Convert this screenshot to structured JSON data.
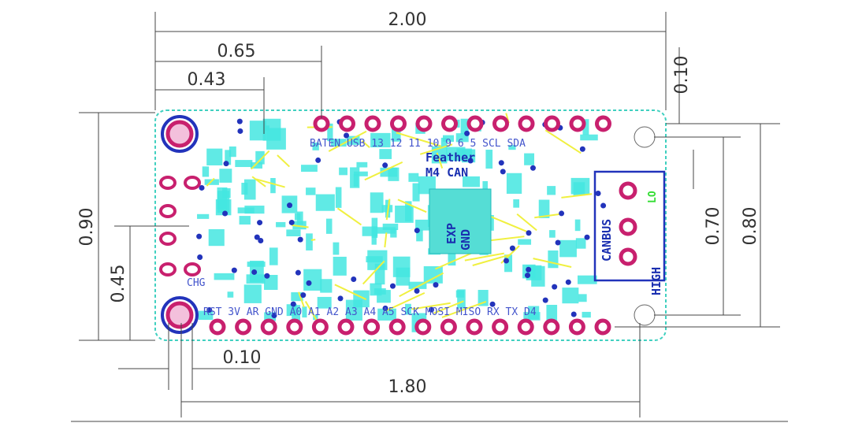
{
  "dimensions": {
    "overall_width": "2.00",
    "header_offset": "0.65",
    "sensor_offset": "0.43",
    "top_margin": "0.10",
    "overall_height": "0.90",
    "half_height": "0.45",
    "inner_mount_spacing": "0.70",
    "header_spacing": "0.80",
    "left_margin": "0.10",
    "mount_hole_spacing": "1.80"
  },
  "board": {
    "top_header_labels": "BATEN USB 13 12 11 10 9 6 5 SCL SDA",
    "bottom_header_labels": "RST 3V AR GND A0 A1 A2 A3 A4 A5 SCK MOSI MISO RX TX D4",
    "name_line1": "Feather",
    "name_line2": "M4 CAN",
    "chip_label1": "EXP",
    "chip_label2": "GND",
    "connector_label": "CANBUS",
    "high_label": "HIGH",
    "low_label": "LO",
    "charge_label": "CHG"
  },
  "colors": {
    "pad": "#c8206e",
    "copper_top": "#44e6e0",
    "trace_yellow": "#f0f040",
    "outline": "#2233bb",
    "board_edge": "#40d0c0"
  }
}
